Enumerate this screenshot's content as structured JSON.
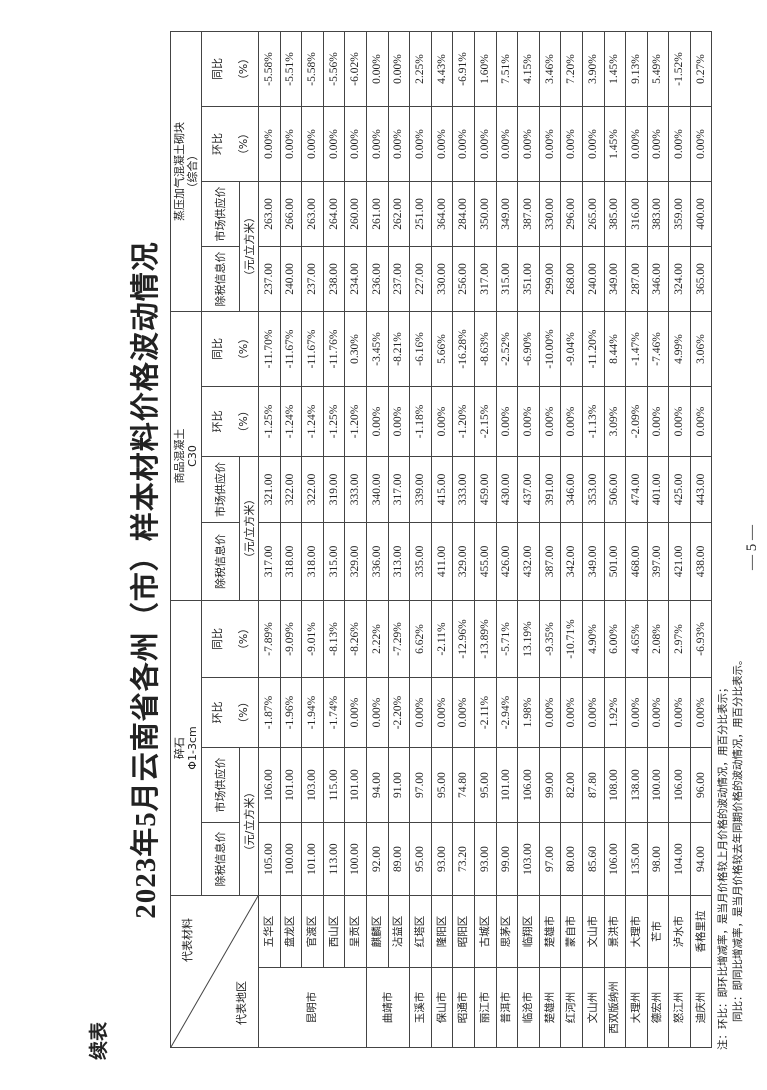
{
  "continued_label": "续表",
  "title": "2023年5月云南省各州（市）样本材料价格波动情况",
  "header": {
    "material_label": "代表材料",
    "region_label": "代表地区",
    "unit": "（元/立方米）",
    "pct": "（%）",
    "materials": [
      {
        "name": "碎石",
        "spec": "Φ1-3cm",
        "col1": "除税信息价",
        "col2": "市场供应价",
        "col3": "环比",
        "col4": "同比"
      },
      {
        "name": "商品混凝土",
        "spec": "C30",
        "col1": "除税信息价",
        "col2": "市场供应价",
        "col3": "环比",
        "col4": "同比"
      },
      {
        "name": "蒸压加气混凝土砌块",
        "spec": "（综合）",
        "col1": "除税信息价",
        "col2": "市场供应价",
        "col3": "环比",
        "col4": "同比"
      }
    ]
  },
  "cities": [
    {
      "name": "昆明市",
      "span": 5
    },
    {
      "name": "曲靖市",
      "span": 2
    },
    {
      "name": "玉溪市",
      "span": 1
    },
    {
      "name": "保山市",
      "span": 1
    },
    {
      "name": "昭通市",
      "span": 1
    },
    {
      "name": "丽江市",
      "span": 1
    },
    {
      "name": "普洱市",
      "span": 1
    },
    {
      "name": "临沧市",
      "span": 1
    },
    {
      "name": "楚雄州",
      "span": 1
    },
    {
      "name": "红河州",
      "span": 1
    },
    {
      "name": "文山州",
      "span": 1
    },
    {
      "name": "西双版纳州",
      "span": 1
    },
    {
      "name": "大理州",
      "span": 1
    },
    {
      "name": "德宏州",
      "span": 1
    },
    {
      "name": "怒江州",
      "span": 1
    },
    {
      "name": "迪庆州",
      "span": 1
    }
  ],
  "rows": [
    {
      "district": "五华区",
      "v": [
        "105.00",
        "106.00",
        "-1.87%",
        "-7.89%",
        "317.00",
        "321.00",
        "-1.25%",
        "-11.70%",
        "237.00",
        "263.00",
        "0.00%",
        "-5.58%"
      ]
    },
    {
      "district": "盘龙区",
      "v": [
        "100.00",
        "101.00",
        "-1.96%",
        "-9.09%",
        "318.00",
        "322.00",
        "-1.24%",
        "-11.67%",
        "240.00",
        "266.00",
        "0.00%",
        "-5.51%"
      ]
    },
    {
      "district": "官渡区",
      "v": [
        "101.00",
        "103.00",
        "-1.94%",
        "-9.01%",
        "318.00",
        "322.00",
        "-1.24%",
        "-11.67%",
        "237.00",
        "263.00",
        "0.00%",
        "-5.58%"
      ]
    },
    {
      "district": "西山区",
      "v": [
        "113.00",
        "115.00",
        "-1.74%",
        "-8.13%",
        "315.00",
        "319.00",
        "-1.25%",
        "-11.76%",
        "238.00",
        "264.00",
        "0.00%",
        "-5.56%"
      ]
    },
    {
      "district": "呈贡区",
      "v": [
        "100.00",
        "101.00",
        "0.00%",
        "-8.26%",
        "329.00",
        "333.00",
        "-1.20%",
        "0.30%",
        "234.00",
        "260.00",
        "0.00%",
        "-6.02%"
      ]
    },
    {
      "district": "麒麟区",
      "v": [
        "92.00",
        "94.00",
        "0.00%",
        "2.22%",
        "336.00",
        "340.00",
        "0.00%",
        "-3.45%",
        "236.00",
        "261.00",
        "0.00%",
        "0.00%"
      ]
    },
    {
      "district": "沾益区",
      "v": [
        "89.00",
        "91.00",
        "-2.20%",
        "-7.29%",
        "313.00",
        "317.00",
        "0.00%",
        "-8.21%",
        "237.00",
        "262.00",
        "0.00%",
        "0.00%"
      ]
    },
    {
      "district": "红塔区",
      "v": [
        "95.00",
        "97.00",
        "0.00%",
        "6.62%",
        "335.00",
        "339.00",
        "-1.18%",
        "-6.16%",
        "227.00",
        "251.00",
        "0.00%",
        "2.25%"
      ]
    },
    {
      "district": "隆阳区",
      "v": [
        "93.00",
        "95.00",
        "0.00%",
        "-2.11%",
        "411.00",
        "415.00",
        "0.00%",
        "5.66%",
        "330.00",
        "364.00",
        "0.00%",
        "4.43%"
      ]
    },
    {
      "district": "昭阳区",
      "v": [
        "73.20",
        "74.80",
        "0.00%",
        "-12.96%",
        "329.00",
        "333.00",
        "-1.20%",
        "-16.28%",
        "256.00",
        "284.00",
        "0.00%",
        "-6.91%"
      ]
    },
    {
      "district": "古城区",
      "v": [
        "93.00",
        "95.00",
        "-2.11%",
        "-13.89%",
        "455.00",
        "459.00",
        "-2.15%",
        "-8.63%",
        "317.00",
        "350.00",
        "0.00%",
        "1.60%"
      ]
    },
    {
      "district": "思茅区",
      "v": [
        "99.00",
        "101.00",
        "-2.94%",
        "-5.71%",
        "426.00",
        "430.00",
        "0.00%",
        "-2.52%",
        "315.00",
        "349.00",
        "0.00%",
        "7.51%"
      ]
    },
    {
      "district": "临翔区",
      "v": [
        "103.00",
        "106.00",
        "1.98%",
        "13.19%",
        "432.00",
        "437.00",
        "0.00%",
        "-6.90%",
        "351.00",
        "387.00",
        "0.00%",
        "4.15%"
      ]
    },
    {
      "district": "楚雄市",
      "v": [
        "97.00",
        "99.00",
        "0.00%",
        "-9.35%",
        "387.00",
        "391.00",
        "0.00%",
        "-10.00%",
        "299.00",
        "330.00",
        "0.00%",
        "3.46%"
      ]
    },
    {
      "district": "蒙自市",
      "v": [
        "80.00",
        "82.00",
        "0.00%",
        "-10.71%",
        "342.00",
        "346.00",
        "0.00%",
        "-9.04%",
        "268.00",
        "296.00",
        "0.00%",
        "7.20%"
      ]
    },
    {
      "district": "文山市",
      "v": [
        "85.60",
        "87.80",
        "0.00%",
        "4.90%",
        "349.00",
        "353.00",
        "-1.13%",
        "-11.20%",
        "240.00",
        "265.00",
        "0.00%",
        "3.90%"
      ]
    },
    {
      "district": "景洪市",
      "v": [
        "106.00",
        "108.00",
        "1.92%",
        "6.00%",
        "501.00",
        "506.00",
        "3.09%",
        "8.44%",
        "349.00",
        "385.00",
        "1.45%",
        "1.45%"
      ]
    },
    {
      "district": "大理市",
      "v": [
        "135.00",
        "138.00",
        "0.00%",
        "4.65%",
        "468.00",
        "474.00",
        "-2.09%",
        "-1.47%",
        "287.00",
        "316.00",
        "0.00%",
        "9.13%"
      ]
    },
    {
      "district": "芒市",
      "v": [
        "98.00",
        "100.00",
        "0.00%",
        "2.08%",
        "397.00",
        "401.00",
        "0.00%",
        "-7.46%",
        "346.00",
        "383.00",
        "0.00%",
        "5.49%"
      ]
    },
    {
      "district": "泸水市",
      "v": [
        "104.00",
        "106.00",
        "0.00%",
        "2.97%",
        "421.00",
        "425.00",
        "0.00%",
        "4.99%",
        "324.00",
        "359.00",
        "0.00%",
        "-1.52%"
      ]
    },
    {
      "district": "香格里拉",
      "v": [
        "94.00",
        "96.00",
        "0.00%",
        "-6.93%",
        "438.00",
        "443.00",
        "0.00%",
        "3.06%",
        "365.00",
        "400.00",
        "0.00%",
        "0.27%"
      ]
    }
  ],
  "notes": {
    "line1": "注：环比：即环比增减率，是当月价格较上月价格的波动情况，用百分比表示；",
    "line2": "同比：即同比增减率，是当月价格较去年同期价格的波动情况，用百分比表示。"
  },
  "page_number": "— 5 —"
}
